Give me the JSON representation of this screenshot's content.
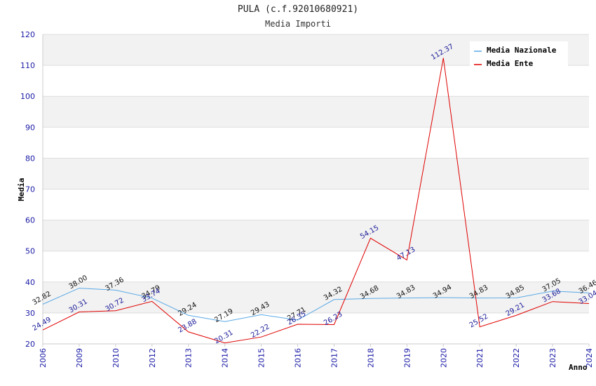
{
  "chart_data": {
    "type": "line",
    "title": "PULA (c.f.92010680921)",
    "subtitle": "Media Importi",
    "xlabel": "Anno",
    "ylabel": "Media",
    "ylim": [
      20,
      120
    ],
    "yticks": [
      20,
      30,
      40,
      50,
      60,
      70,
      80,
      90,
      100,
      110,
      120
    ],
    "categories": [
      "2006",
      "2009",
      "2010",
      "2012",
      "2013",
      "2014",
      "2015",
      "2016",
      "2017",
      "2018",
      "2019",
      "2020",
      "2021",
      "2022",
      "2023",
      "2024"
    ],
    "series": [
      {
        "name": "Media Nazionale",
        "color": "#5aa9e6",
        "values": [
          32.82,
          38.0,
          37.36,
          34.79,
          29.24,
          27.19,
          29.43,
          27.71,
          34.32,
          34.68,
          34.83,
          34.94,
          34.83,
          34.85,
          37.05,
          36.46
        ],
        "labels": [
          "32.82",
          "38.00",
          "37.36",
          "34.79",
          "29.24",
          "27.19",
          "29.43",
          "27.71",
          "34.32",
          "34.68",
          "34.83",
          "34.94",
          "34.83",
          "34.85",
          "37.05",
          "36.46"
        ]
      },
      {
        "name": "Media Ente",
        "color": "#e00000",
        "values": [
          24.49,
          30.31,
          30.72,
          33.74,
          23.88,
          20.31,
          22.22,
          26.35,
          26.23,
          54.15,
          47.13,
          112.37,
          25.52,
          29.21,
          33.68,
          33.04
        ],
        "labels": [
          "24.49",
          "30.31",
          "30.72",
          "33.74",
          "23.88",
          "20.31",
          "22.22",
          "26.35",
          "26.23",
          "54.15",
          "47.13",
          "112.37",
          "25.52",
          "29.21",
          "33.68",
          "33.04"
        ]
      }
    ],
    "legend": "top-right",
    "grid": true
  }
}
